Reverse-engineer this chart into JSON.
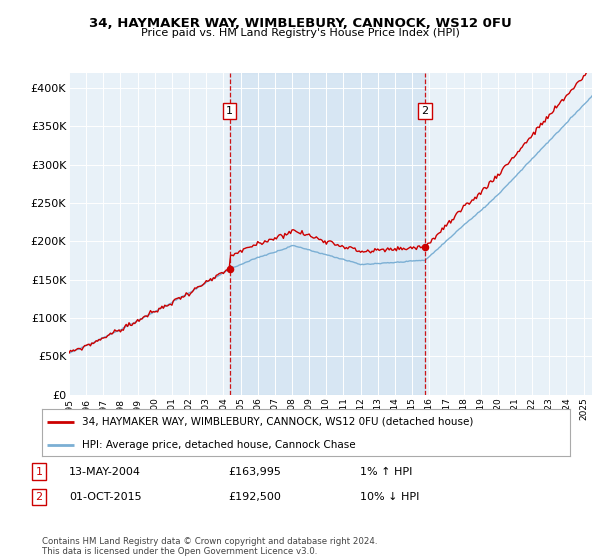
{
  "title": "34, HAYMAKER WAY, WIMBLEBURY, CANNOCK, WS12 0FU",
  "subtitle": "Price paid vs. HM Land Registry's House Price Index (HPI)",
  "ylabel_ticks": [
    "£0",
    "£50K",
    "£100K",
    "£150K",
    "£200K",
    "£250K",
    "£300K",
    "£350K",
    "£400K"
  ],
  "ytick_values": [
    0,
    50000,
    100000,
    150000,
    200000,
    250000,
    300000,
    350000,
    400000
  ],
  "ylim": [
    0,
    420000
  ],
  "xlim_start": 1995.0,
  "xlim_end": 2025.5,
  "plot_bg_color": "#e8f1f8",
  "hpi_color": "#7bafd4",
  "price_color": "#cc0000",
  "sale1_price": 163995,
  "sale1_x": 2004.36,
  "sale1_date": "13-MAY-2004",
  "sale1_hpi_diff": "1% ↑ HPI",
  "sale2_price": 192500,
  "sale2_x": 2015.75,
  "sale2_date": "01-OCT-2015",
  "sale2_hpi_diff": "10% ↓ HPI",
  "legend_label1": "34, HAYMAKER WAY, WIMBLEBURY, CANNOCK, WS12 0FU (detached house)",
  "legend_label2": "HPI: Average price, detached house, Cannock Chase",
  "footer1": "Contains HM Land Registry data © Crown copyright and database right 2024.",
  "footer2": "This data is licensed under the Open Government Licence v3.0."
}
